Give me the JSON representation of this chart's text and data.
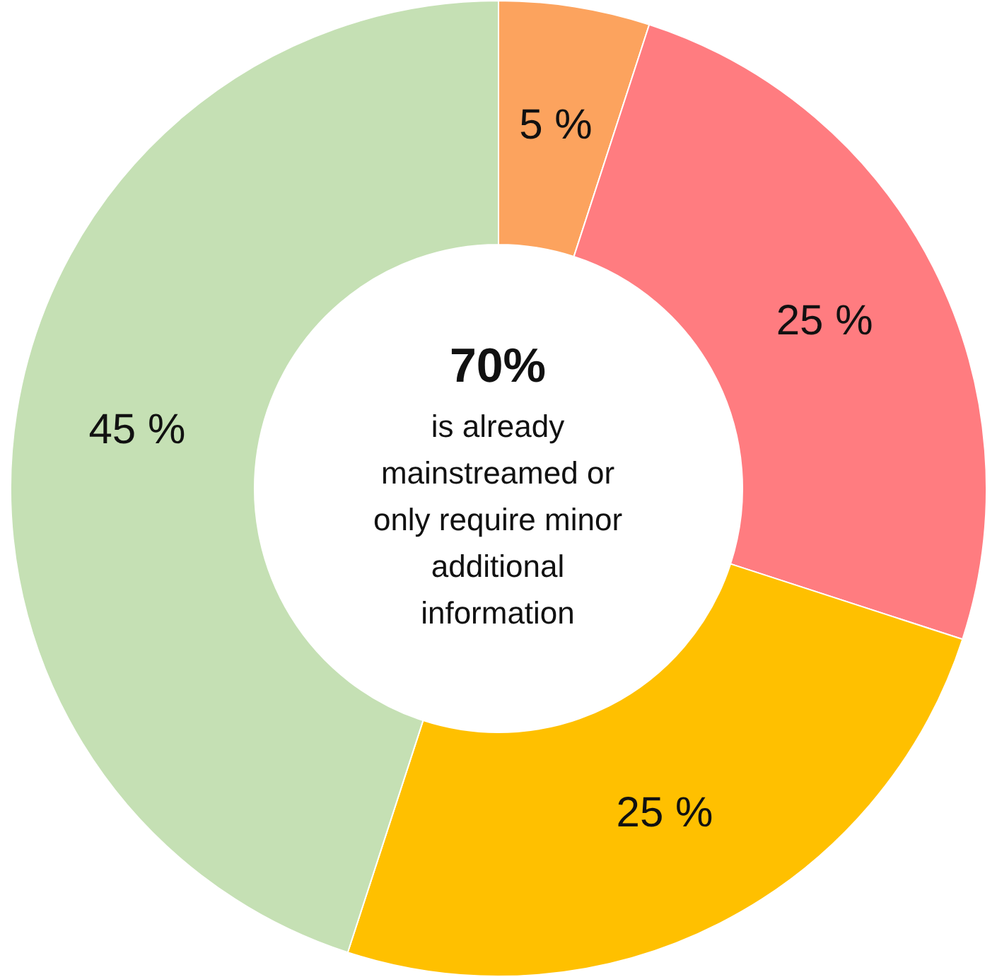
{
  "chart_data": {
    "type": "donut",
    "categories": [
      null,
      null,
      null,
      null
    ],
    "values": [
      5,
      25,
      25,
      45
    ],
    "colors": [
      "#fca35e",
      "#ff7c80",
      "#ffc000",
      "#c5e0b4"
    ],
    "value_labels": [
      "5 %",
      "25 %",
      "25 %",
      "45 %"
    ],
    "annotations": [
      "70%",
      "is already mainstreamed or only require minor additional information"
    ],
    "legend": false
  }
}
